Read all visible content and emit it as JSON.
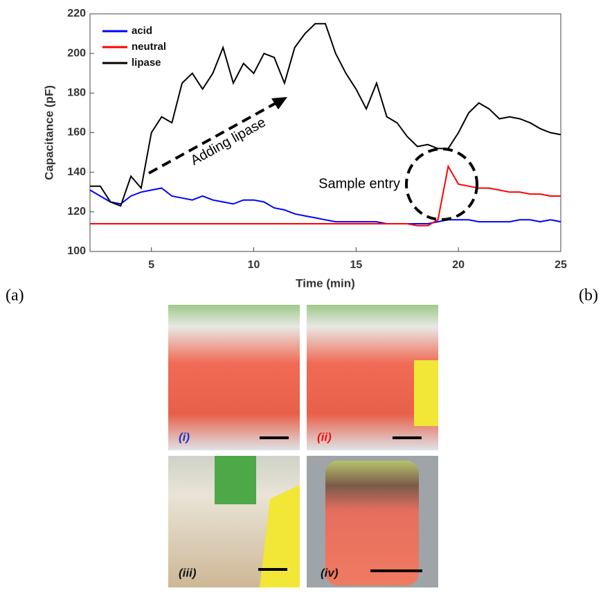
{
  "chart_data": {
    "type": "line",
    "x_label": "Time (min)",
    "y_label": "Capacitance (pF)",
    "xlim": [
      2,
      25
    ],
    "xticks": [
      5,
      10,
      15,
      20,
      25
    ],
    "ylim": [
      100,
      220
    ],
    "yticks": [
      100,
      120,
      140,
      160,
      180,
      200,
      220
    ],
    "grid": false,
    "legend": "upper left",
    "x": [
      2,
      2.5,
      3,
      3.5,
      4,
      4.5,
      5,
      5.5,
      6,
      6.5,
      7,
      7.5,
      8,
      8.5,
      9,
      9.5,
      10,
      10.5,
      11,
      11.5,
      12,
      12.5,
      13,
      13.5,
      14,
      14.5,
      15,
      15.5,
      16,
      16.5,
      17,
      17.5,
      18,
      18.5,
      19,
      19.5,
      20,
      20.5,
      21,
      21.5,
      22,
      22.5,
      23,
      23.5,
      24,
      24.5,
      25
    ],
    "series": [
      {
        "name": "acid",
        "color": "#0000ff",
        "values": [
          131,
          128,
          125,
          124,
          128,
          130,
          131,
          132,
          128,
          127,
          126,
          128,
          126,
          125,
          124,
          126,
          126,
          125,
          122,
          121,
          119,
          118,
          117,
          116,
          115,
          115,
          115,
          115,
          115,
          114,
          114,
          114,
          114,
          114,
          115,
          116,
          116,
          116,
          115,
          115,
          115,
          115,
          116,
          116,
          115,
          116,
          115
        ]
      },
      {
        "name": "neutral",
        "color": "#ff0000",
        "values": [
          114,
          114,
          114,
          114,
          114,
          114,
          114,
          114,
          114,
          114,
          114,
          114,
          114,
          114,
          114,
          114,
          114,
          114,
          114,
          114,
          114,
          114,
          114,
          114,
          114,
          114,
          114,
          114,
          114,
          114,
          114,
          114,
          113,
          113,
          116,
          143,
          134,
          133,
          132,
          132,
          131,
          130,
          130,
          129,
          129,
          128,
          128
        ]
      },
      {
        "name": "lipase",
        "color": "#000000",
        "values": [
          133,
          133,
          125,
          123,
          138,
          132,
          160,
          168,
          165,
          185,
          190,
          182,
          190,
          203,
          185,
          195,
          190,
          200,
          198,
          185,
          203,
          210,
          215,
          215,
          200,
          190,
          182,
          172,
          185,
          168,
          165,
          158,
          153,
          154,
          152,
          152,
          160,
          170,
          175,
          172,
          167,
          168,
          167,
          165,
          162,
          160,
          159
        ]
      }
    ],
    "annotations": [
      "Adding lipase",
      "Sample entry"
    ]
  },
  "panel_labels": [
    "(a)",
    "(b)"
  ],
  "photos": [
    {
      "label": "(i)",
      "color": "#2233cc"
    },
    {
      "label": "(ii)",
      "color": "#ee1111"
    },
    {
      "label": "(iii)",
      "color": "#111111"
    },
    {
      "label": "(iv)",
      "color": "#111111"
    }
  ]
}
